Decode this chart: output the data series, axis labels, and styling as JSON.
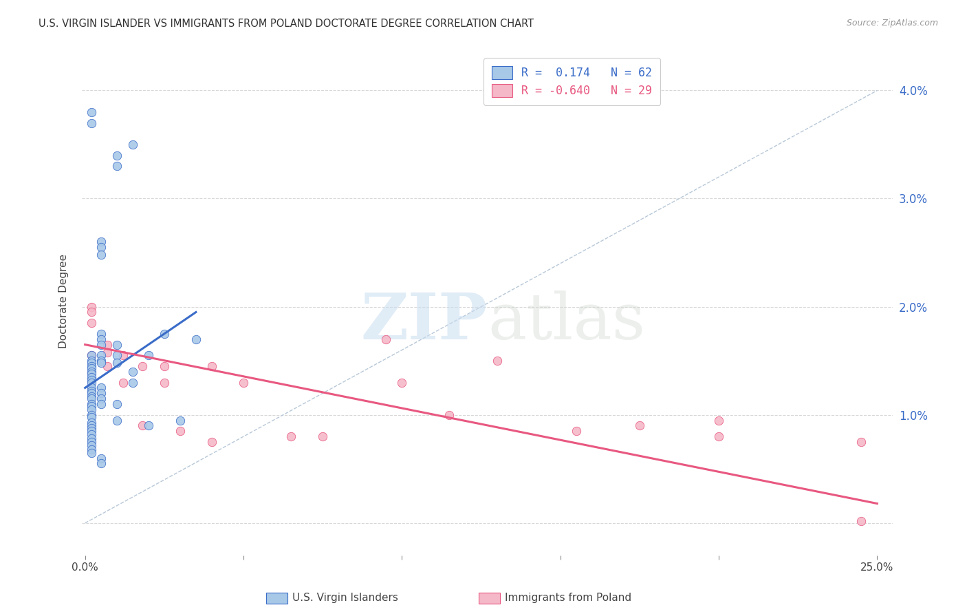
{
  "title": "U.S. VIRGIN ISLANDER VS IMMIGRANTS FROM POLAND DOCTORATE DEGREE CORRELATION CHART",
  "source": "Source: ZipAtlas.com",
  "ylabel": "Doctorate Degree",
  "y_ticks": [
    0.0,
    0.01,
    0.02,
    0.03,
    0.04
  ],
  "y_tick_labels_right": [
    "",
    "1.0%",
    "2.0%",
    "3.0%",
    "4.0%"
  ],
  "x_ticks": [
    0.0,
    0.05,
    0.1,
    0.15,
    0.2,
    0.25
  ],
  "x_tick_labels": [
    "0.0%",
    "",
    "",
    "",
    "",
    "25.0%"
  ],
  "xlim": [
    -0.001,
    0.255
  ],
  "ylim": [
    -0.003,
    0.044
  ],
  "r_blue": 0.174,
  "n_blue": 62,
  "r_pink": -0.64,
  "n_pink": 29,
  "blue_scatter_x": [
    0.002,
    0.002,
    0.002,
    0.002,
    0.002,
    0.002,
    0.002,
    0.002,
    0.002,
    0.002,
    0.002,
    0.002,
    0.002,
    0.002,
    0.002,
    0.002,
    0.002,
    0.002,
    0.002,
    0.002,
    0.002,
    0.002,
    0.002,
    0.002,
    0.002,
    0.002,
    0.002,
    0.002,
    0.002,
    0.002,
    0.005,
    0.005,
    0.005,
    0.005,
    0.005,
    0.005,
    0.005,
    0.005,
    0.005,
    0.005,
    0.005,
    0.005,
    0.005,
    0.005,
    0.005,
    0.01,
    0.01,
    0.01,
    0.01,
    0.01,
    0.01,
    0.01,
    0.015,
    0.015,
    0.015,
    0.02,
    0.02,
    0.025,
    0.03,
    0.035,
    0.002,
    0.002
  ],
  "blue_scatter_y": [
    0.0155,
    0.015,
    0.0148,
    0.0145,
    0.0143,
    0.014,
    0.0138,
    0.0135,
    0.0132,
    0.013,
    0.0125,
    0.0122,
    0.012,
    0.0117,
    0.0115,
    0.011,
    0.0108,
    0.0105,
    0.01,
    0.0098,
    0.0093,
    0.009,
    0.0088,
    0.0085,
    0.0082,
    0.0078,
    0.0075,
    0.0072,
    0.0068,
    0.0065,
    0.026,
    0.0255,
    0.0248,
    0.0175,
    0.017,
    0.0165,
    0.0155,
    0.015,
    0.0148,
    0.0125,
    0.012,
    0.0115,
    0.011,
    0.006,
    0.0055,
    0.034,
    0.033,
    0.0165,
    0.0155,
    0.0148,
    0.011,
    0.0095,
    0.035,
    0.014,
    0.013,
    0.0155,
    0.009,
    0.0175,
    0.0095,
    0.017,
    0.038,
    0.037
  ],
  "pink_scatter_x": [
    0.002,
    0.002,
    0.002,
    0.002,
    0.007,
    0.007,
    0.007,
    0.012,
    0.012,
    0.018,
    0.018,
    0.025,
    0.025,
    0.03,
    0.04,
    0.04,
    0.05,
    0.065,
    0.075,
    0.095,
    0.1,
    0.115,
    0.13,
    0.155,
    0.175,
    0.2,
    0.2,
    0.245,
    0.245
  ],
  "pink_scatter_y": [
    0.02,
    0.0195,
    0.0185,
    0.0155,
    0.0165,
    0.0158,
    0.0145,
    0.0155,
    0.013,
    0.0145,
    0.009,
    0.0145,
    0.013,
    0.0085,
    0.0145,
    0.0075,
    0.013,
    0.008,
    0.008,
    0.017,
    0.013,
    0.01,
    0.015,
    0.0085,
    0.009,
    0.0095,
    0.008,
    0.0075,
    0.0002
  ],
  "blue_line_x": [
    0.0,
    0.035
  ],
  "blue_line_y_start": 0.0125,
  "blue_line_y_end": 0.0195,
  "pink_line_x": [
    0.0,
    0.25
  ],
  "pink_line_y_start": 0.0165,
  "pink_line_y_end": 0.0018,
  "dashed_line_x": [
    0.0,
    0.25
  ],
  "dashed_line_y_start": 0.0,
  "dashed_line_y_end": 0.04,
  "blue_dot_color": "#a8c8e8",
  "pink_dot_color": "#f5b8c8",
  "blue_line_color": "#3a6cc8",
  "pink_line_color": "#e85880",
  "dashed_line_color": "#b8c8d8",
  "watermark_zip": "ZIP",
  "watermark_atlas": "atlas",
  "legend_label_blue": "U.S. Virgin Islanders",
  "legend_label_pink": "Immigrants from Poland",
  "background_color": "#ffffff",
  "grid_color": "#d8d8d8"
}
